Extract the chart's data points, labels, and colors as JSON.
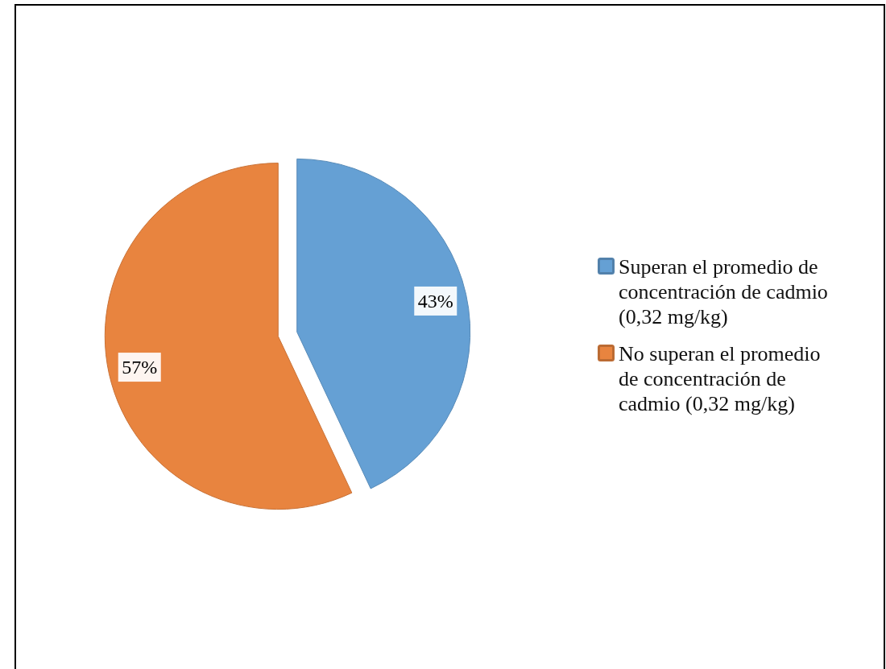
{
  "chart_data": {
    "type": "pie",
    "categories": [
      "Superan el promedio de concentración de cadmio (0,32 mg/kg)",
      "No superan el promedio de concentración de cadmio (0,32 mg/kg)"
    ],
    "values": [
      43,
      57
    ],
    "colors": [
      "#65a0d4",
      "#e8843f"
    ],
    "value_labels": [
      "43%",
      "57%"
    ],
    "legend": "right"
  }
}
